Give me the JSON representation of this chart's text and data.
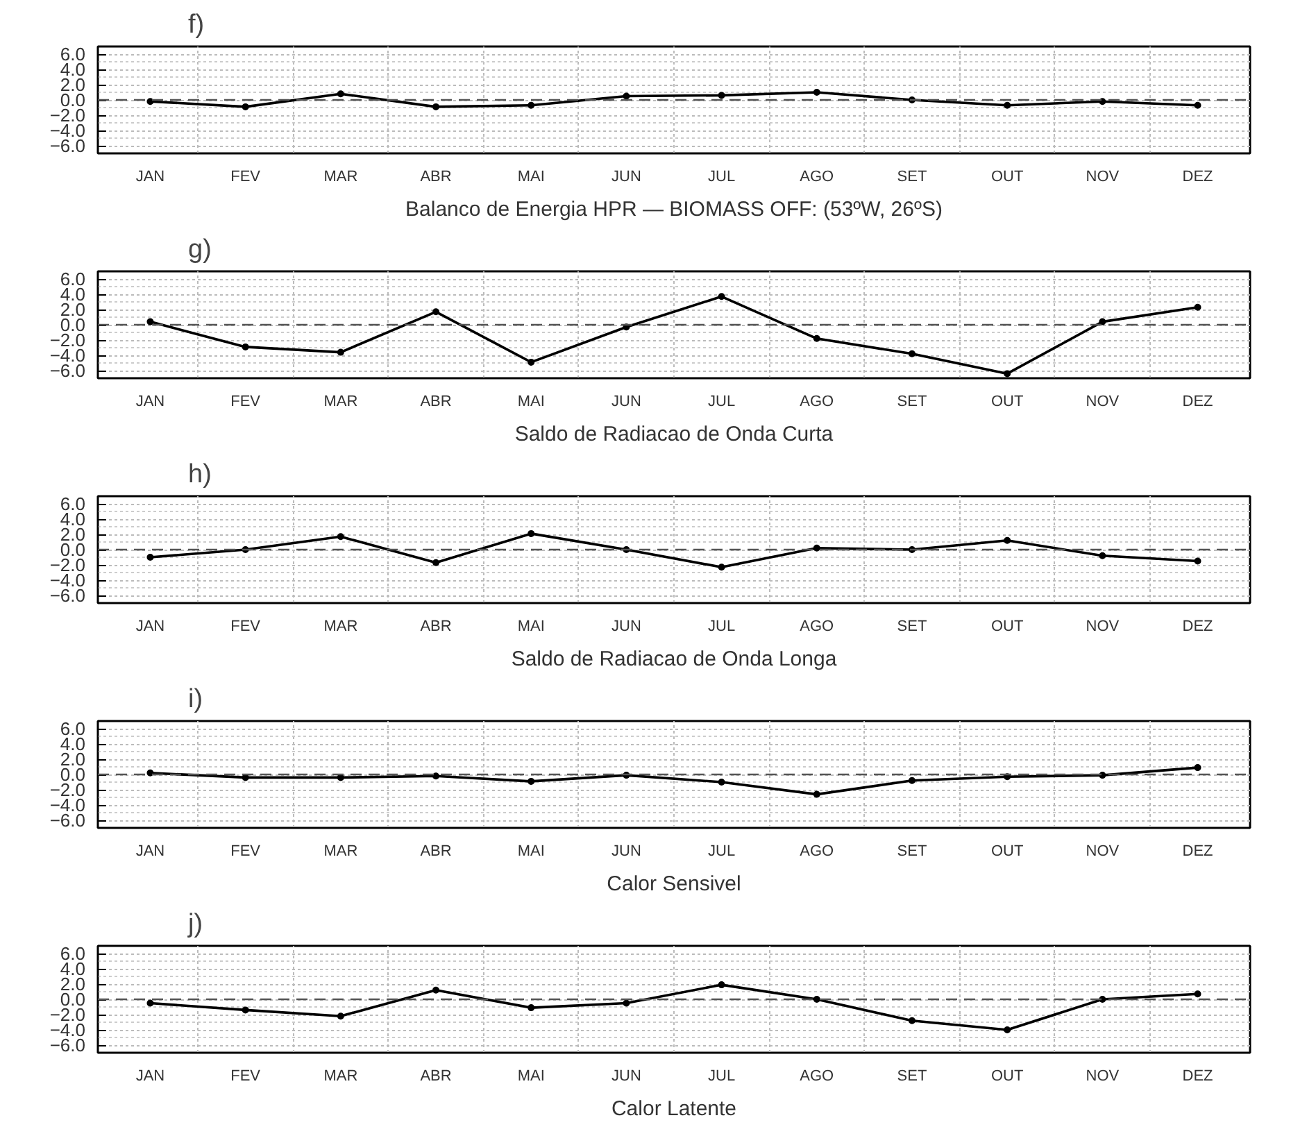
{
  "chart_data": [
    {
      "type": "line",
      "title": "f)",
      "xlabel": "Balanco de Energia HPR — BIOMASS OFF: (53ºW, 26ºS)",
      "categories": [
        "JAN",
        "FEV",
        "MAR",
        "ABR",
        "MAI",
        "JUN",
        "JUL",
        "AGO",
        "SET",
        "OUT",
        "NOV",
        "DEZ"
      ],
      "values": [
        -0.2,
        -0.9,
        0.8,
        -0.9,
        -0.7,
        0.5,
        0.6,
        1.0,
        0.0,
        -0.7,
        -0.2,
        -0.7
      ],
      "color": "#000000",
      "marker": "circle",
      "line_style": "solid",
      "ylim": [
        -7,
        7
      ],
      "yticks": [
        {
          "value": 6,
          "label": "6.0"
        },
        {
          "value": 4,
          "label": "4.0"
        },
        {
          "value": 2,
          "label": "2.0"
        },
        {
          "value": 0,
          "label": "0.0"
        },
        {
          "value": -2,
          "label": "−2.0"
        },
        {
          "value": -4,
          "label": "−4.0"
        },
        {
          "value": -6,
          "label": "−6.0"
        }
      ],
      "ref_lines": [
        {
          "axis": "y",
          "value": 0,
          "line_style": "dashed",
          "color": "#555555"
        }
      ],
      "grid": true
    },
    {
      "type": "line",
      "title": "g)",
      "xlabel": "Saldo de Radiacao de Onda Curta",
      "categories": [
        "JAN",
        "FEV",
        "MAR",
        "ABR",
        "MAI",
        "JUN",
        "JUL",
        "AGO",
        "SET",
        "OUT",
        "NOV",
        "DEZ"
      ],
      "values": [
        0.4,
        -2.9,
        -3.6,
        1.7,
        -4.9,
        -0.3,
        3.7,
        -1.8,
        -3.8,
        -6.4,
        0.4,
        2.3
      ],
      "color": "#000000",
      "marker": "circle",
      "line_style": "solid",
      "ylim": [
        -7,
        7
      ],
      "yticks": [
        {
          "value": 6,
          "label": "6.0"
        },
        {
          "value": 4,
          "label": "4.0"
        },
        {
          "value": 2,
          "label": "2.0"
        },
        {
          "value": 0,
          "label": "0.0"
        },
        {
          "value": -2,
          "label": "−2.0"
        },
        {
          "value": -4,
          "label": "−4.0"
        },
        {
          "value": -6,
          "label": "−6.0"
        }
      ],
      "ref_lines": [
        {
          "axis": "y",
          "value": 0,
          "line_style": "dashed",
          "color": "#555555"
        }
      ],
      "grid": true
    },
    {
      "type": "line",
      "title": "h)",
      "xlabel": "Saldo de Radiacao de Onda Longa",
      "categories": [
        "JAN",
        "FEV",
        "MAR",
        "ABR",
        "MAI",
        "JUN",
        "JUL",
        "AGO",
        "SET",
        "OUT",
        "NOV",
        "DEZ"
      ],
      "values": [
        -1.0,
        0.0,
        1.7,
        -1.7,
        2.1,
        0.0,
        -2.3,
        0.2,
        0.0,
        1.2,
        -0.8,
        -1.5
      ],
      "color": "#000000",
      "marker": "circle",
      "line_style": "solid",
      "ylim": [
        -7,
        7
      ],
      "yticks": [
        {
          "value": 6,
          "label": "6.0"
        },
        {
          "value": 4,
          "label": "4.0"
        },
        {
          "value": 2,
          "label": "2.0"
        },
        {
          "value": 0,
          "label": "0.0"
        },
        {
          "value": -2,
          "label": "−2.0"
        },
        {
          "value": -4,
          "label": "−4.0"
        },
        {
          "value": -6,
          "label": "−6.0"
        }
      ],
      "ref_lines": [
        {
          "axis": "y",
          "value": 0,
          "line_style": "dashed",
          "color": "#555555"
        }
      ],
      "grid": true
    },
    {
      "type": "line",
      "title": "i)",
      "xlabel": "Calor Sensivel",
      "categories": [
        "JAN",
        "FEV",
        "MAR",
        "ABR",
        "MAI",
        "JUN",
        "JUL",
        "AGO",
        "SET",
        "OUT",
        "NOV",
        "DEZ"
      ],
      "values": [
        0.2,
        -0.4,
        -0.4,
        -0.2,
        -0.9,
        -0.1,
        -1.0,
        -2.6,
        -0.8,
        -0.3,
        -0.1,
        0.9
      ],
      "color": "#000000",
      "marker": "circle",
      "line_style": "solid",
      "ylim": [
        -7,
        7
      ],
      "yticks": [
        {
          "value": 6,
          "label": "6.0"
        },
        {
          "value": 4,
          "label": "4.0"
        },
        {
          "value": 2,
          "label": "2.0"
        },
        {
          "value": 0,
          "label": "0.0"
        },
        {
          "value": -2,
          "label": "−2.0"
        },
        {
          "value": -4,
          "label": "−4.0"
        },
        {
          "value": -6,
          "label": "−6.0"
        }
      ],
      "ref_lines": [
        {
          "axis": "y",
          "value": 0,
          "line_style": "dashed",
          "color": "#555555"
        }
      ],
      "grid": true
    },
    {
      "type": "line",
      "title": "j)",
      "xlabel": "Calor Latente",
      "categories": [
        "JAN",
        "FEV",
        "MAR",
        "ABR",
        "MAI",
        "JUN",
        "JUL",
        "AGO",
        "SET",
        "OUT",
        "NOV",
        "DEZ"
      ],
      "values": [
        -0.5,
        -1.4,
        -2.2,
        1.2,
        -1.1,
        -0.5,
        1.9,
        0.0,
        -2.8,
        -4.0,
        0.0,
        0.7
      ],
      "color": "#000000",
      "marker": "circle",
      "line_style": "solid",
      "ylim": [
        -7,
        7
      ],
      "yticks": [
        {
          "value": 6,
          "label": "6.0"
        },
        {
          "value": 4,
          "label": "4.0"
        },
        {
          "value": 2,
          "label": "2.0"
        },
        {
          "value": 0,
          "label": "0.0"
        },
        {
          "value": -2,
          "label": "−2.0"
        },
        {
          "value": -4,
          "label": "−4.0"
        },
        {
          "value": -6,
          "label": "−6.0"
        }
      ],
      "ref_lines": [
        {
          "axis": "y",
          "value": 0,
          "line_style": "dashed",
          "color": "#555555"
        }
      ],
      "grid": true
    }
  ]
}
